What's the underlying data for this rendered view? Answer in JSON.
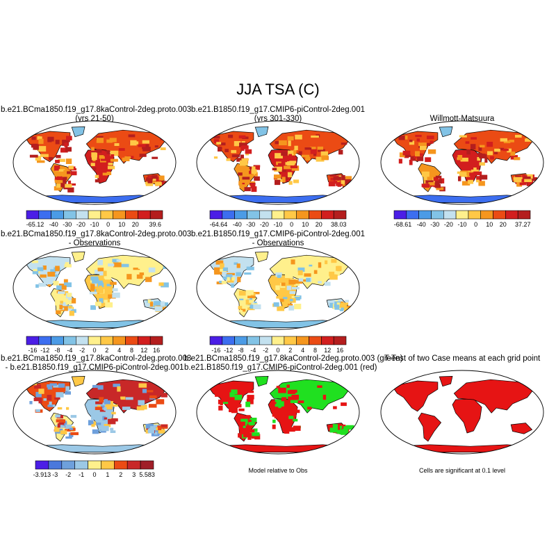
{
  "title": "JJA TSA (C)",
  "colors": {
    "abs": [
      "#4b1ee6",
      "#3c6ef0",
      "#4b9be6",
      "#82c3e6",
      "#c3e1ef",
      "#fff08c",
      "#ffc846",
      "#f5961e",
      "#eb4b14",
      "#d21e1e",
      "#b41e1e"
    ],
    "diff": [
      "#4b1ee6",
      "#3c6ef0",
      "#4b9be6",
      "#82c3e6",
      "#c3e1ef",
      "#fff08c",
      "#ffc846",
      "#f5961e",
      "#eb4b14",
      "#d21e1e",
      "#b41e1e"
    ],
    "diff2": [
      "#4b1ee6",
      "#4b78dc",
      "#6ea0dc",
      "#9bc8e6",
      "#fff08c",
      "#ffc846",
      "#eb4b14",
      "#c82828",
      "#a01e28"
    ],
    "ttest_red": "#e61414",
    "ttest_green": "#20e020",
    "land_warm": "#e03020",
    "land_orange": "#f5a020",
    "ice_blue": "#3c6ef0"
  },
  "panels": [
    {
      "id": "p1",
      "title_lines": [
        "b.e21.BCma1850.f19_g17.8kaControl-2deg.proto.003",
        "(yrs 21-50)"
      ],
      "footer": "",
      "colorbar": {
        "ticks": [
          "-65.12",
          "-40",
          "-30",
          "-20",
          "-10",
          "0",
          "10",
          "20",
          "39.6"
        ],
        "scheme": "abs"
      }
    },
    {
      "id": "p2",
      "title_lines": [
        "b.e21.B1850.f19_g17.CMIP6-piControl-2deg.001",
        "(yrs 301-330)"
      ],
      "footer": "",
      "colorbar": {
        "ticks": [
          "-64.64",
          "-40",
          "-30",
          "-20",
          "-10",
          "0",
          "10",
          "20",
          "38.03"
        ],
        "scheme": "abs"
      }
    },
    {
      "id": "p3",
      "title_lines": [
        "",
        "Willmott-Matsuura"
      ],
      "footer": "",
      "colorbar": {
        "ticks": [
          "-68.61",
          "-40",
          "-30",
          "-20",
          "-10",
          "0",
          "10",
          "20",
          "37.27"
        ],
        "scheme": "abs"
      }
    },
    {
      "id": "p4",
      "title_lines": [
        "b.e21.BCma1850.f19_g17.8kaControl-2deg.proto.003",
        "- Observations"
      ],
      "footer": "",
      "colorbar": {
        "ticks": [
          "-16",
          "-12",
          "-8",
          "-4",
          "-2",
          "0",
          "2",
          "4",
          "8",
          "12",
          "16"
        ],
        "scheme": "diff"
      }
    },
    {
      "id": "p5",
      "title_lines": [
        "b.e21.B1850.f19_g17.CMIP6-piControl-2deg.001",
        "- Observations"
      ],
      "footer": "",
      "colorbar": {
        "ticks": [
          "-16",
          "-12",
          "-8",
          "-4",
          "-2",
          "0",
          "2",
          "4",
          "8",
          "12",
          "16"
        ],
        "scheme": "diff"
      }
    },
    {
      "id": "p6",
      "title_lines": [
        "",
        ""
      ],
      "footer": "",
      "colorbar": null
    },
    {
      "id": "p7",
      "title_lines": [
        "b.e21.BCma1850.f19_g17.8kaControl-2deg.proto.003",
        "- b.e21.B1850.f19_g17.CMIP6-piControl-2deg.001"
      ],
      "footer": "",
      "colorbar": {
        "ticks": [
          "-3.913",
          "-3",
          "-2",
          "-1",
          "0",
          "1",
          "2",
          "3",
          "5.583"
        ],
        "scheme": "diff2"
      }
    },
    {
      "id": "p8",
      "title_lines": [
        "b.e21.BCma1850.f19_g17.8kaControl-2deg.proto.003 (green)",
        "b.e21.B1850.f19_g17.CMIP6-piControl-2deg.001 (red)"
      ],
      "footer": "Model relative to Obs",
      "colorbar": null
    },
    {
      "id": "p9",
      "title_lines": [
        "T-Test of two Case means at each grid point",
        ""
      ],
      "footer": "Cells are significant at 0.1 level",
      "colorbar": null
    }
  ],
  "chart_data": {
    "type": "heatmap",
    "title": "JJA TSA (C)",
    "layout": "3x3 grid of global maps (Robinson-like projection)",
    "panels": [
      {
        "name": "b.e21.BCma1850.f19_g17.8kaControl-2deg.proto.003 (yrs 21-50)",
        "range": [
          -65.12,
          39.6
        ],
        "levels": [
          -40,
          -30,
          -20,
          -10,
          0,
          10,
          20
        ]
      },
      {
        "name": "b.e21.B1850.f19_g17.CMIP6-piControl-2deg.001 (yrs 301-330)",
        "range": [
          -64.64,
          38.03
        ],
        "levels": [
          -40,
          -30,
          -20,
          -10,
          0,
          10,
          20
        ]
      },
      {
        "name": "Willmott-Matsuura",
        "range": [
          -68.61,
          37.27
        ],
        "levels": [
          -40,
          -30,
          -20,
          -10,
          0,
          10,
          20
        ]
      },
      {
        "name": "b.e21.BCma1850.f19_g17.8kaControl-2deg.proto.003 - Observations",
        "levels": [
          -16,
          -12,
          -8,
          -4,
          -2,
          0,
          2,
          4,
          8,
          12,
          16
        ]
      },
      {
        "name": "b.e21.B1850.f19_g17.CMIP6-piControl-2deg.001 - Observations",
        "levels": [
          -16,
          -12,
          -8,
          -4,
          -2,
          0,
          2,
          4,
          8,
          12,
          16
        ]
      },
      {
        "name": "b.e21.BCma1850.f19_g17.8kaControl-2deg.proto.003 - b.e21.B1850.f19_g17.CMIP6-piControl-2deg.001",
        "range": [
          -3.913,
          5.583
        ],
        "levels": [
          -3,
          -2,
          -1,
          0,
          1,
          2,
          3
        ]
      },
      {
        "name": "Model relative to Obs"
      },
      {
        "name": "T-Test of two Case means at each grid point"
      }
    ]
  }
}
